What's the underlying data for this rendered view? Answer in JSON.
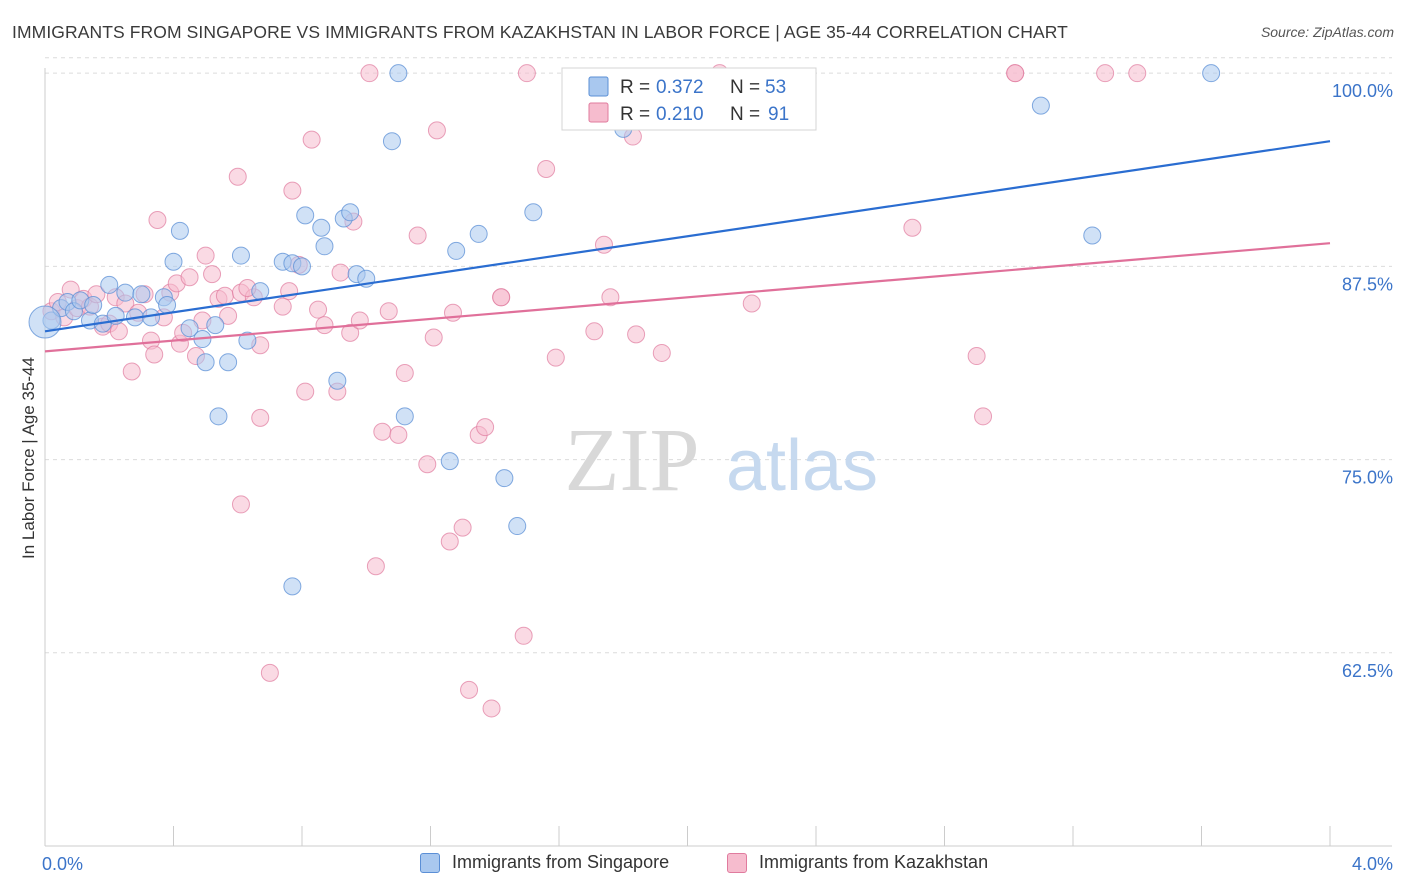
{
  "header": {
    "title": "IMMIGRANTS FROM SINGAPORE VS IMMIGRANTS FROM KAZAKHSTAN IN LABOR FORCE | AGE 35-44 CORRELATION CHART",
    "source": "Source: ZipAtlas.com"
  },
  "watermark": {
    "zip": "ZIP",
    "atlas": "atlas"
  },
  "colors": {
    "singapore_fill": "#a9c8ef",
    "singapore_stroke": "#5b8fd6",
    "singapore_line": "#2a6dd1",
    "kazakhstan_fill": "#f6bcce",
    "kazakhstan_stroke": "#e07b9e",
    "kazakhstan_line": "#e0709a",
    "axis_label": "#3b74c9",
    "grid": "#dcdcdc"
  },
  "chart_data": {
    "type": "scatter",
    "title": "IMMIGRANTS FROM SINGAPORE VS IMMIGRANTS FROM KAZAKHSTAN IN LABOR FORCE | AGE 35-44 CORRELATION CHART",
    "xlabel": "",
    "ylabel": "In Labor Force | Age 35-44",
    "xlim": [
      0.0,
      4.0
    ],
    "ylim": [
      50.0,
      101.5
    ],
    "x_tick_labels": [
      "0.0%",
      "4.0%"
    ],
    "y_ticks": [
      62.5,
      75.0,
      87.5,
      100.0
    ],
    "y_tick_labels": [
      "62.5%",
      "75.0%",
      "87.5%",
      "100.0%"
    ],
    "grid": true,
    "legend_position": "top-center",
    "stats_legend": [
      {
        "r_label": "R =",
        "r_value": "0.372",
        "n_label": "N =",
        "n_value": "53"
      },
      {
        "r_label": "R =",
        "r_value": "0.210",
        "n_label": "N =",
        "n_value": "91"
      }
    ],
    "series": [
      {
        "name": "Immigrants from Singapore",
        "color": "#a9c8ef",
        "trend": {
          "x": [
            0.0,
            4.0
          ],
          "y": [
            83.3,
            95.6
          ]
        },
        "points": [
          [
            0.02,
            84.0
          ],
          [
            0.05,
            84.8
          ],
          [
            0.07,
            85.2
          ],
          [
            0.09,
            84.6
          ],
          [
            0.11,
            85.3
          ],
          [
            0.14,
            84.0
          ],
          [
            0.15,
            85.0
          ],
          [
            0.18,
            83.8
          ],
          [
            0.2,
            86.3
          ],
          [
            0.22,
            84.3
          ],
          [
            0.25,
            85.8
          ],
          [
            0.28,
            84.2
          ],
          [
            0.3,
            85.7
          ],
          [
            0.33,
            84.2
          ],
          [
            0.37,
            85.5
          ],
          [
            0.38,
            85.0
          ],
          [
            0.4,
            87.8
          ],
          [
            0.42,
            89.8
          ],
          [
            0.45,
            83.5
          ],
          [
            0.49,
            82.8
          ],
          [
            0.5,
            81.3
          ],
          [
            0.53,
            83.7
          ],
          [
            0.54,
            77.8
          ],
          [
            0.57,
            81.3
          ],
          [
            0.61,
            88.2
          ],
          [
            0.63,
            82.7
          ],
          [
            0.67,
            85.9
          ],
          [
            0.74,
            87.8
          ],
          [
            0.77,
            87.7
          ],
          [
            0.81,
            90.8
          ],
          [
            0.8,
            87.5
          ],
          [
            0.87,
            88.8
          ],
          [
            0.86,
            90.0
          ],
          [
            0.93,
            90.6
          ],
          [
            0.95,
            91.0
          ],
          [
            0.97,
            87.0
          ],
          [
            1.0,
            86.7
          ],
          [
            0.91,
            80.1
          ],
          [
            0.77,
            66.8
          ],
          [
            1.08,
            95.6
          ],
          [
            1.1,
            100.0
          ],
          [
            1.12,
            77.8
          ],
          [
            1.26,
            74.9
          ],
          [
            1.28,
            88.5
          ],
          [
            1.35,
            89.6
          ],
          [
            1.43,
            73.8
          ],
          [
            1.47,
            70.7
          ],
          [
            1.52,
            91.0
          ],
          [
            1.8,
            96.4
          ],
          [
            3.1,
            97.9
          ],
          [
            3.63,
            100.0
          ],
          [
            3.26,
            89.5
          ],
          [
            0.0,
            83.9
          ]
        ]
      },
      {
        "name": "Immigrants from Kazakhstan",
        "color": "#f6bcce",
        "trend": {
          "x": [
            0.0,
            4.0
          ],
          "y": [
            82.0,
            89.0
          ]
        },
        "points": [
          [
            0.02,
            84.6
          ],
          [
            0.04,
            85.2
          ],
          [
            0.06,
            84.2
          ],
          [
            0.08,
            86.0
          ],
          [
            0.1,
            84.8
          ],
          [
            0.12,
            85.4
          ],
          [
            0.14,
            84.9
          ],
          [
            0.16,
            85.7
          ],
          [
            0.18,
            83.6
          ],
          [
            0.2,
            83.8
          ],
          [
            0.22,
            85.5
          ],
          [
            0.23,
            83.3
          ],
          [
            0.25,
            85.1
          ],
          [
            0.27,
            80.7
          ],
          [
            0.29,
            84.5
          ],
          [
            0.31,
            85.7
          ],
          [
            0.33,
            82.7
          ],
          [
            0.34,
            81.8
          ],
          [
            0.35,
            90.5
          ],
          [
            0.37,
            84.2
          ],
          [
            0.39,
            85.8
          ],
          [
            0.41,
            86.4
          ],
          [
            0.42,
            82.5
          ],
          [
            0.43,
            83.2
          ],
          [
            0.45,
            86.8
          ],
          [
            0.47,
            81.7
          ],
          [
            0.49,
            84.0
          ],
          [
            0.5,
            88.2
          ],
          [
            0.52,
            87.0
          ],
          [
            0.54,
            85.4
          ],
          [
            0.56,
            85.6
          ],
          [
            0.57,
            84.3
          ],
          [
            0.6,
            93.3
          ],
          [
            0.61,
            85.8
          ],
          [
            0.61,
            72.1
          ],
          [
            0.65,
            85.5
          ],
          [
            0.67,
            82.4
          ],
          [
            0.67,
            77.7
          ],
          [
            0.7,
            61.2
          ],
          [
            0.74,
            84.9
          ],
          [
            0.76,
            85.9
          ],
          [
            0.77,
            92.4
          ],
          [
            0.79,
            87.6
          ],
          [
            0.81,
            79.4
          ],
          [
            0.83,
            95.7
          ],
          [
            0.85,
            84.7
          ],
          [
            0.87,
            83.7
          ],
          [
            0.91,
            79.4
          ],
          [
            0.92,
            87.1
          ],
          [
            0.95,
            83.2
          ],
          [
            0.96,
            90.4
          ],
          [
            0.98,
            84.0
          ],
          [
            1.01,
            100.0
          ],
          [
            1.03,
            68.1
          ],
          [
            1.05,
            76.8
          ],
          [
            1.07,
            84.6
          ],
          [
            1.1,
            76.6
          ],
          [
            1.12,
            80.6
          ],
          [
            1.16,
            89.5
          ],
          [
            1.19,
            74.7
          ],
          [
            1.21,
            82.9
          ],
          [
            1.22,
            96.3
          ],
          [
            1.26,
            69.7
          ],
          [
            1.27,
            84.5
          ],
          [
            1.3,
            70.6
          ],
          [
            1.32,
            60.1
          ],
          [
            1.35,
            76.6
          ],
          [
            1.37,
            77.1
          ],
          [
            1.39,
            58.9
          ],
          [
            1.42,
            85.5
          ],
          [
            1.49,
            63.6
          ],
          [
            1.5,
            100.0
          ],
          [
            1.56,
            93.8
          ],
          [
            1.59,
            81.6
          ],
          [
            1.71,
            83.3
          ],
          [
            1.74,
            88.9
          ],
          [
            1.76,
            85.5
          ],
          [
            1.83,
            95.9
          ],
          [
            1.84,
            83.1
          ],
          [
            1.92,
            81.9
          ],
          [
            2.1,
            100.0
          ],
          [
            2.2,
            85.1
          ],
          [
            2.7,
            90.0
          ],
          [
            2.9,
            81.7
          ],
          [
            2.92,
            77.8
          ],
          [
            3.3,
            100.0
          ],
          [
            3.4,
            100.0
          ],
          [
            3.02,
            100.0
          ],
          [
            3.02,
            100.0
          ],
          [
            1.42,
            85.5
          ],
          [
            0.63,
            86.1
          ]
        ]
      }
    ]
  },
  "bottom_legend": [
    {
      "label": "Immigrants from Singapore"
    },
    {
      "label": "Immigrants from Kazakhstan"
    }
  ]
}
